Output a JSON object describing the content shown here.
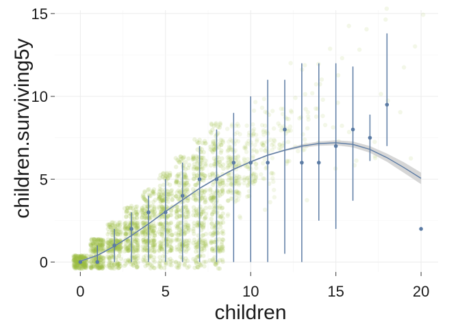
{
  "chart_data": {
    "type": "scatter",
    "xlabel": "children",
    "ylabel": "children.surviving5y",
    "xlim": [
      -1.5,
      21.0
    ],
    "ylim": [
      -0.6,
      15.2
    ],
    "x_ticks": [
      0,
      5,
      10,
      15,
      20
    ],
    "y_ticks": [
      0,
      5,
      10,
      15
    ],
    "x_tick_labels": [
      "0",
      "5",
      "10",
      "15",
      "20"
    ],
    "y_tick_labels": [
      "0",
      "5",
      "10",
      "15"
    ],
    "grid": true,
    "legend": "none",
    "colors": {
      "raw_points": "#9bbb45",
      "summary": "#5b7ba4",
      "ribbon": "#c8c8c8"
    },
    "series": [
      {
        "kind": "summary_points_with_range",
        "x": [
          0,
          1,
          2,
          3,
          4,
          5,
          6,
          7,
          8,
          9,
          10,
          11,
          12,
          13,
          14,
          15,
          16,
          17,
          18,
          20
        ],
        "y": [
          0,
          0,
          1,
          2,
          3,
          3,
          4,
          5,
          5,
          6,
          6,
          6,
          8,
          6,
          6,
          7,
          8,
          7.5,
          9.5,
          2
        ],
        "ymin": [
          0,
          0,
          0,
          0,
          0,
          0,
          0,
          0,
          0,
          0,
          0,
          0,
          0.5,
          0,
          2.5,
          2,
          3.7,
          6.1,
          7.0,
          2
        ],
        "ymax": [
          0,
          1,
          2,
          3,
          4,
          5,
          6,
          7,
          8,
          9,
          10,
          11,
          11,
          12,
          12,
          12,
          11.8,
          8.9,
          13.8,
          2
        ]
      },
      {
        "kind": "smooth_fit",
        "x": [
          0,
          1,
          2,
          3,
          4,
          5,
          6,
          7,
          8,
          9,
          10,
          11,
          12,
          13,
          14,
          15,
          16,
          17,
          18,
          19,
          20
        ],
        "y": [
          0.05,
          0.4,
          0.95,
          1.6,
          2.3,
          3.05,
          3.75,
          4.45,
          5.05,
          5.6,
          6.05,
          6.45,
          6.75,
          7.0,
          7.15,
          7.2,
          7.1,
          6.8,
          6.3,
          5.7,
          5.05
        ],
        "y_low": [
          0.0,
          0.35,
          0.9,
          1.55,
          2.25,
          3.0,
          3.7,
          4.4,
          5.0,
          5.55,
          6.0,
          6.4,
          6.7,
          6.9,
          7.02,
          7.05,
          6.92,
          6.6,
          6.05,
          5.38,
          4.7
        ],
        "y_high": [
          0.1,
          0.45,
          1.0,
          1.65,
          2.35,
          3.1,
          3.8,
          4.5,
          5.1,
          5.65,
          6.1,
          6.5,
          6.8,
          7.1,
          7.28,
          7.35,
          7.28,
          7.0,
          6.55,
          6.02,
          5.4
        ]
      },
      {
        "kind": "jittered_raw_points",
        "x_range": [
          0,
          20
        ],
        "note_visible": false
      }
    ]
  }
}
